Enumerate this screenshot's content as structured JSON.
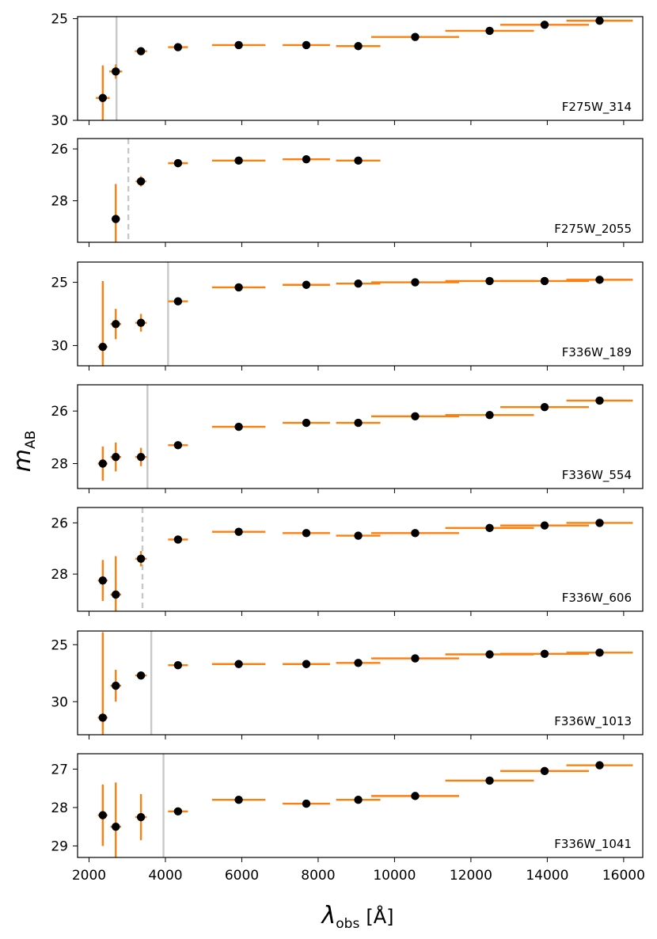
{
  "chart_data": {
    "type": "scatter",
    "xlabel_main": "λ",
    "xlabel_sub": "obs",
    "xlabel_unit": "[Å]",
    "ylabel_main": "m",
    "ylabel_sub": "AB",
    "xlim": [
      1700,
      16500
    ],
    "xticks": [
      2000,
      4000,
      6000,
      8000,
      10000,
      12000,
      14000,
      16000
    ],
    "xtick_labels": [
      "2000",
      "4000",
      "6000",
      "8000",
      "10000",
      "12000",
      "14000",
      "16000"
    ],
    "colors": {
      "errorbar": "#ff7f0e",
      "point": "#000000",
      "break_line": "#c8c8c8"
    },
    "panels": [
      {
        "label": "F275W_314",
        "ylim": [
          30,
          24.9
        ],
        "yticks": [
          25,
          30
        ],
        "ytick_labels": [
          "25",
          "30"
        ],
        "break_wavelength": 2720,
        "break_style": "solid",
        "points": [
          {
            "x": 2360,
            "y": 28.9,
            "xerr": 180,
            "yerr": 1.6
          },
          {
            "x": 2700,
            "y": 27.6,
            "xerr": 170,
            "yerr": 0.35
          },
          {
            "x": 3360,
            "y": 26.6,
            "xerr": 160,
            "yerr": 0.1
          },
          {
            "x": 4330,
            "y": 26.4,
            "xerr": 260,
            "yerr": 0.05
          },
          {
            "x": 5920,
            "y": 26.3,
            "xerr": 700,
            "yerr": 0.05
          },
          {
            "x": 7690,
            "y": 26.3,
            "xerr": 620,
            "yerr": 0.05
          },
          {
            "x": 9050,
            "y": 26.35,
            "xerr": 580,
            "yerr": 0.05
          },
          {
            "x": 10540,
            "y": 25.9,
            "xerr": 1150,
            "yerr": 0.05
          },
          {
            "x": 12490,
            "y": 25.6,
            "xerr": 1160,
            "yerr": 0.05
          },
          {
            "x": 13930,
            "y": 25.3,
            "xerr": 1160,
            "yerr": 0.05
          },
          {
            "x": 15370,
            "y": 25.1,
            "xerr": 870,
            "yerr": 0.05
          }
        ]
      },
      {
        "label": "F275W_2055",
        "ylim": [
          29.6,
          25.6
        ],
        "yticks": [
          26,
          28
        ],
        "ytick_labels": [
          "26",
          "28"
        ],
        "break_wavelength": 3030,
        "break_style": "dashed",
        "points": [
          {
            "x": 2700,
            "y": 28.7,
            "xerr": 110,
            "yerr": 1.35
          },
          {
            "x": 3360,
            "y": 27.25,
            "xerr": 140,
            "yerr": 0.2
          },
          {
            "x": 4330,
            "y": 26.55,
            "xerr": 260,
            "yerr": 0.05
          },
          {
            "x": 5920,
            "y": 26.45,
            "xerr": 700,
            "yerr": 0.05
          },
          {
            "x": 7690,
            "y": 26.4,
            "xerr": 620,
            "yerr": 0.05
          },
          {
            "x": 9050,
            "y": 26.45,
            "xerr": 580,
            "yerr": 0.05
          }
        ]
      },
      {
        "label": "F336W_189",
        "ylim": [
          31.6,
          23.4
        ],
        "yticks": [
          25,
          30
        ],
        "ytick_labels": [
          "25",
          "30"
        ],
        "break_wavelength": 4070,
        "break_style": "solid",
        "points": [
          {
            "x": 2360,
            "y": 30.1,
            "xerr": 130,
            "yerr": 5.2
          },
          {
            "x": 2700,
            "y": 28.3,
            "xerr": 140,
            "yerr": 1.2
          },
          {
            "x": 3360,
            "y": 28.2,
            "xerr": 150,
            "yerr": 0.7
          },
          {
            "x": 4330,
            "y": 26.5,
            "xerr": 260,
            "yerr": 0.1
          },
          {
            "x": 5920,
            "y": 25.4,
            "xerr": 700,
            "yerr": 0.05
          },
          {
            "x": 7690,
            "y": 25.2,
            "xerr": 620,
            "yerr": 0.05
          },
          {
            "x": 9050,
            "y": 25.1,
            "xerr": 580,
            "yerr": 0.05
          },
          {
            "x": 10540,
            "y": 25.0,
            "xerr": 1150,
            "yerr": 0.05
          },
          {
            "x": 12490,
            "y": 24.9,
            "xerr": 1160,
            "yerr": 0.05
          },
          {
            "x": 13930,
            "y": 24.9,
            "xerr": 1160,
            "yerr": 0.05
          },
          {
            "x": 15370,
            "y": 24.8,
            "xerr": 870,
            "yerr": 0.05
          }
        ]
      },
      {
        "label": "F336W_554",
        "ylim": [
          28.95,
          25.0
        ],
        "yticks": [
          26,
          28
        ],
        "ytick_labels": [
          "26",
          "28"
        ],
        "break_wavelength": 3530,
        "break_style": "solid",
        "points": [
          {
            "x": 2360,
            "y": 28.0,
            "xerr": 130,
            "yerr": 0.65
          },
          {
            "x": 2700,
            "y": 27.75,
            "xerr": 140,
            "yerr": 0.55
          },
          {
            "x": 3360,
            "y": 27.75,
            "xerr": 150,
            "yerr": 0.35
          },
          {
            "x": 4330,
            "y": 27.3,
            "xerr": 260,
            "yerr": 0.08
          },
          {
            "x": 5920,
            "y": 26.6,
            "xerr": 700,
            "yerr": 0.05
          },
          {
            "x": 7690,
            "y": 26.45,
            "xerr": 620,
            "yerr": 0.05
          },
          {
            "x": 9050,
            "y": 26.45,
            "xerr": 580,
            "yerr": 0.05
          },
          {
            "x": 10540,
            "y": 26.2,
            "xerr": 1150,
            "yerr": 0.05
          },
          {
            "x": 12490,
            "y": 26.15,
            "xerr": 1160,
            "yerr": 0.05
          },
          {
            "x": 13930,
            "y": 25.85,
            "xerr": 1160,
            "yerr": 0.05
          },
          {
            "x": 15370,
            "y": 25.6,
            "xerr": 870,
            "yerr": 0.05
          }
        ]
      },
      {
        "label": "F336W_606",
        "ylim": [
          29.45,
          25.4
        ],
        "yticks": [
          26,
          28
        ],
        "ytick_labels": [
          "26",
          "28"
        ],
        "break_wavelength": 3400,
        "break_style": "dashed",
        "points": [
          {
            "x": 2360,
            "y": 28.25,
            "xerr": 130,
            "yerr": 0.8
          },
          {
            "x": 2700,
            "y": 28.8,
            "xerr": 140,
            "yerr": 1.5
          },
          {
            "x": 3360,
            "y": 27.4,
            "xerr": 150,
            "yerr": 0.3
          },
          {
            "x": 4330,
            "y": 26.65,
            "xerr": 260,
            "yerr": 0.08
          },
          {
            "x": 5920,
            "y": 26.35,
            "xerr": 700,
            "yerr": 0.05
          },
          {
            "x": 7690,
            "y": 26.4,
            "xerr": 620,
            "yerr": 0.05
          },
          {
            "x": 9050,
            "y": 26.5,
            "xerr": 580,
            "yerr": 0.05
          },
          {
            "x": 10540,
            "y": 26.4,
            "xerr": 1150,
            "yerr": 0.05
          },
          {
            "x": 12490,
            "y": 26.2,
            "xerr": 1160,
            "yerr": 0.05
          },
          {
            "x": 13930,
            "y": 26.1,
            "xerr": 1160,
            "yerr": 0.05
          },
          {
            "x": 15370,
            "y": 26.0,
            "xerr": 870,
            "yerr": 0.05
          }
        ]
      },
      {
        "label": "F336W_1013",
        "ylim": [
          32.9,
          23.8
        ],
        "yticks": [
          25,
          30
        ],
        "ytick_labels": [
          "25",
          "30"
        ],
        "break_wavelength": 3630,
        "break_style": "solid",
        "points": [
          {
            "x": 2360,
            "y": 31.4,
            "xerr": 130,
            "yerr": 7.5
          },
          {
            "x": 2700,
            "y": 28.6,
            "xerr": 140,
            "yerr": 1.4
          },
          {
            "x": 3360,
            "y": 27.7,
            "xerr": 150,
            "yerr": 0.2
          },
          {
            "x": 4330,
            "y": 26.8,
            "xerr": 260,
            "yerr": 0.1
          },
          {
            "x": 5920,
            "y": 26.7,
            "xerr": 700,
            "yerr": 0.05
          },
          {
            "x": 7690,
            "y": 26.7,
            "xerr": 620,
            "yerr": 0.05
          },
          {
            "x": 9050,
            "y": 26.6,
            "xerr": 580,
            "yerr": 0.05
          },
          {
            "x": 10540,
            "y": 26.2,
            "xerr": 1150,
            "yerr": 0.05
          },
          {
            "x": 12490,
            "y": 25.85,
            "xerr": 1160,
            "yerr": 0.05
          },
          {
            "x": 13930,
            "y": 25.8,
            "xerr": 1160,
            "yerr": 0.05
          },
          {
            "x": 15370,
            "y": 25.7,
            "xerr": 870,
            "yerr": 0.05
          }
        ]
      },
      {
        "label": "F336W_1041",
        "ylim": [
          29.3,
          26.6
        ],
        "yticks": [
          27,
          28,
          29
        ],
        "ytick_labels": [
          "27",
          "28",
          "29"
        ],
        "break_wavelength": 3950,
        "break_style": "solid",
        "points": [
          {
            "x": 2360,
            "y": 28.2,
            "xerr": 130,
            "yerr": 0.8
          },
          {
            "x": 2700,
            "y": 28.5,
            "xerr": 140,
            "yerr": 1.15
          },
          {
            "x": 3360,
            "y": 28.25,
            "xerr": 150,
            "yerr": 0.6
          },
          {
            "x": 4330,
            "y": 28.1,
            "xerr": 260,
            "yerr": 0.06
          },
          {
            "x": 5920,
            "y": 27.8,
            "xerr": 700,
            "yerr": 0.05
          },
          {
            "x": 7690,
            "y": 27.9,
            "xerr": 620,
            "yerr": 0.05
          },
          {
            "x": 9050,
            "y": 27.8,
            "xerr": 580,
            "yerr": 0.05
          },
          {
            "x": 10540,
            "y": 27.7,
            "xerr": 1150,
            "yerr": 0.05
          },
          {
            "x": 12490,
            "y": 27.3,
            "xerr": 1160,
            "yerr": 0.05
          },
          {
            "x": 13930,
            "y": 27.05,
            "xerr": 1160,
            "yerr": 0.05
          },
          {
            "x": 15370,
            "y": 26.9,
            "xerr": 870,
            "yerr": 0.05
          }
        ]
      }
    ]
  }
}
